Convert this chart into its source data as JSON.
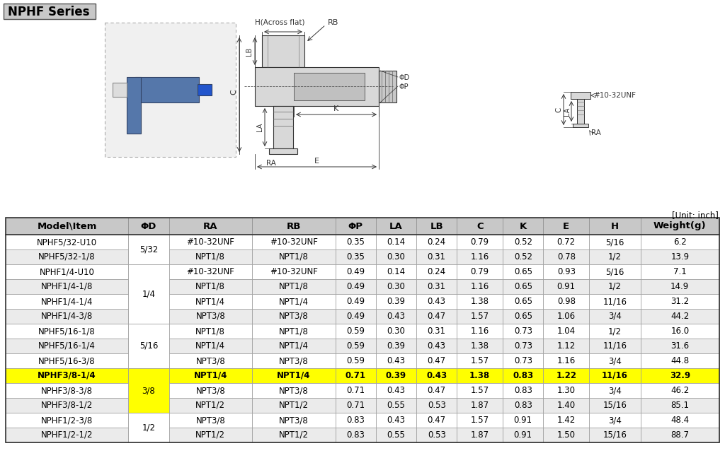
{
  "title": "NPHF Series",
  "unit_label": "[Unit: inch]",
  "columns": [
    "Model\\Item",
    "ΦD",
    "RA",
    "RB",
    "ΦP",
    "LA",
    "LB",
    "C",
    "K",
    "E",
    "H",
    "Weight(g)"
  ],
  "rows": [
    [
      "NPHF5/32-U10",
      "5/32",
      "#10-32UNF",
      "#10-32UNF",
      "0.35",
      "0.14",
      "0.24",
      "0.79",
      "0.52",
      "0.72",
      "5/16",
      "6.2"
    ],
    [
      "NPHF5/32-1/8",
      "5/32",
      "NPT1/8",
      "NPT1/8",
      "0.35",
      "0.30",
      "0.31",
      "1.16",
      "0.52",
      "0.78",
      "1/2",
      "13.9"
    ],
    [
      "NPHF1/4-U10",
      "1/4",
      "#10-32UNF",
      "#10-32UNF",
      "0.49",
      "0.14",
      "0.24",
      "0.79",
      "0.65",
      "0.93",
      "5/16",
      "7.1"
    ],
    [
      "NPHF1/4-1/8",
      "1/4",
      "NPT1/8",
      "NPT1/8",
      "0.49",
      "0.30",
      "0.31",
      "1.16",
      "0.65",
      "0.91",
      "1/2",
      "14.9"
    ],
    [
      "NPHF1/4-1/4",
      "1/4",
      "NPT1/4",
      "NPT1/4",
      "0.49",
      "0.39",
      "0.43",
      "1.38",
      "0.65",
      "0.98",
      "11/16",
      "31.2"
    ],
    [
      "NPHF1/4-3/8",
      "1/4",
      "NPT3/8",
      "NPT3/8",
      "0.49",
      "0.43",
      "0.47",
      "1.57",
      "0.65",
      "1.06",
      "3/4",
      "44.2"
    ],
    [
      "NPHF5/16-1/8",
      "5/16",
      "NPT1/8",
      "NPT1/8",
      "0.59",
      "0.30",
      "0.31",
      "1.16",
      "0.73",
      "1.04",
      "1/2",
      "16.0"
    ],
    [
      "NPHF5/16-1/4",
      "5/16",
      "NPT1/4",
      "NPT1/4",
      "0.59",
      "0.39",
      "0.43",
      "1.38",
      "0.73",
      "1.12",
      "11/16",
      "31.6"
    ],
    [
      "NPHF5/16-3/8",
      "5/16",
      "NPT3/8",
      "NPT3/8",
      "0.59",
      "0.43",
      "0.47",
      "1.57",
      "0.73",
      "1.16",
      "3/4",
      "44.8"
    ],
    [
      "NPHF3/8-1/4",
      "3/8",
      "NPT1/4",
      "NPT1/4",
      "0.71",
      "0.39",
      "0.43",
      "1.38",
      "0.83",
      "1.22",
      "11/16",
      "32.9"
    ],
    [
      "NPHF3/8-3/8",
      "3/8",
      "NPT3/8",
      "NPT3/8",
      "0.71",
      "0.43",
      "0.47",
      "1.57",
      "0.83",
      "1.30",
      "3/4",
      "46.2"
    ],
    [
      "NPHF3/8-1/2",
      "3/8",
      "NPT1/2",
      "NPT1/2",
      "0.71",
      "0.55",
      "0.53",
      "1.87",
      "0.83",
      "1.40",
      "15/16",
      "85.1"
    ],
    [
      "NPHF1/2-3/8",
      "1/2",
      "NPT3/8",
      "NPT3/8",
      "0.83",
      "0.43",
      "0.47",
      "1.57",
      "0.91",
      "1.42",
      "3/4",
      "48.4"
    ],
    [
      "NPHF1/2-1/2",
      "1/2",
      "NPT1/2",
      "NPT1/2",
      "0.83",
      "0.55",
      "0.53",
      "1.87",
      "0.91",
      "1.50",
      "15/16",
      "88.7"
    ]
  ],
  "highlight_row": 9,
  "highlight_row_color": "#ffff00",
  "phd_merge_groups": [
    {
      "rows": [
        0,
        1
      ],
      "label": "5/32"
    },
    {
      "rows": [
        2,
        3,
        4,
        5
      ],
      "label": "1/4"
    },
    {
      "rows": [
        6,
        7,
        8
      ],
      "label": "5/16"
    },
    {
      "rows": [
        9,
        10,
        11
      ],
      "label": "3/8"
    },
    {
      "rows": [
        12,
        13
      ],
      "label": "1/2"
    }
  ],
  "phd_highlight_group": 3,
  "header_bg": "#c8c8c8",
  "header_text_color": "#000000",
  "row_bg_white": "#ffffff",
  "row_bg_gray": "#ebebeb",
  "border_color": "#999999",
  "title_bg": "#c8c8c8",
  "font_size_header": 9.5,
  "font_size_data": 8.5,
  "font_size_title": 12
}
